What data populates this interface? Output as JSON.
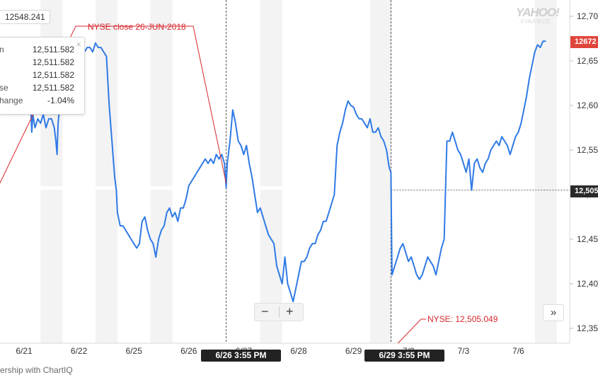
{
  "chart_data": {
    "type": "line",
    "source_label": "YAHOO! FINANCE",
    "x_ticks": [
      "6/21",
      "6/22",
      "6/25",
      "6/26",
      "6/27",
      "6/28",
      "6/29",
      "7/2",
      "7/3",
      "7/6"
    ],
    "y_ticks": [
      "12,70",
      "12,65",
      "12,60",
      "12,55",
      "12,50",
      "12,45",
      "12,40",
      "12,35"
    ],
    "y_tick_values": [
      12700,
      12650,
      12600,
      12550,
      12500,
      12450,
      12400,
      12350
    ],
    "ylim": [
      12325,
      12730
    ],
    "grid": "alternating shaded day columns",
    "line_color": "#2f7ae5",
    "series": [
      {
        "values": [
          [
            6.42,
            12600
          ],
          [
            6.44,
            12570
          ],
          [
            6.46,
            12590
          ],
          [
            6.5,
            12575
          ],
          [
            6.55,
            12585
          ],
          [
            6.6,
            12580
          ],
          [
            6.65,
            12590
          ],
          [
            6.7,
            12575
          ],
          [
            6.75,
            12585
          ],
          [
            6.8,
            12585
          ],
          [
            6.85,
            12575
          ],
          [
            6.88,
            12560
          ],
          [
            6.9,
            12545
          ],
          [
            6.92,
            12580
          ],
          [
            6.95,
            12600
          ],
          [
            6.98,
            12640
          ],
          [
            7.0,
            12650
          ],
          [
            7.05,
            12665
          ],
          [
            7.1,
            12655
          ],
          [
            7.15,
            12670
          ],
          [
            7.2,
            12660
          ],
          [
            7.25,
            12665
          ],
          [
            7.3,
            12660
          ],
          [
            7.35,
            12672
          ],
          [
            7.4,
            12660
          ],
          [
            7.45,
            12665
          ],
          [
            7.5,
            12665
          ],
          [
            7.55,
            12660
          ],
          [
            7.6,
            12670
          ],
          [
            7.65,
            12665
          ],
          [
            7.7,
            12665
          ],
          [
            7.75,
            12660
          ],
          [
            7.8,
            12655
          ],
          [
            7.85,
            12600
          ],
          [
            7.9,
            12560
          ],
          [
            7.95,
            12520
          ],
          [
            7.98,
            12505
          ],
          [
            8.0,
            12480
          ],
          [
            8.05,
            12465
          ],
          [
            8.1,
            12465
          ],
          [
            8.15,
            12460
          ],
          [
            8.2,
            12455
          ],
          [
            8.25,
            12450
          ],
          [
            8.3,
            12445
          ],
          [
            8.35,
            12440
          ],
          [
            8.4,
            12445
          ],
          [
            8.45,
            12470
          ],
          [
            8.5,
            12475
          ],
          [
            8.55,
            12460
          ],
          [
            8.6,
            12450
          ],
          [
            8.65,
            12445
          ],
          [
            8.7,
            12430
          ],
          [
            8.75,
            12450
          ],
          [
            8.8,
            12460
          ],
          [
            8.85,
            12465
          ],
          [
            8.9,
            12480
          ],
          [
            8.95,
            12485
          ],
          [
            9.0,
            12475
          ],
          [
            9.05,
            12480
          ],
          [
            9.1,
            12470
          ],
          [
            9.15,
            12485
          ],
          [
            9.2,
            12485
          ],
          [
            9.25,
            12495
          ],
          [
            9.3,
            12510
          ],
          [
            9.35,
            12515
          ],
          [
            9.4,
            12520
          ],
          [
            9.45,
            12525
          ],
          [
            9.5,
            12530
          ],
          [
            9.55,
            12535
          ],
          [
            9.6,
            12540
          ],
          [
            9.65,
            12535
          ],
          [
            9.7,
            12540
          ],
          [
            9.75,
            12535
          ],
          [
            9.8,
            12545
          ],
          [
            9.85,
            12540
          ],
          [
            9.9,
            12545
          ],
          [
            9.95,
            12535
          ],
          [
            9.98,
            12508
          ],
          [
            10.0,
            12535
          ],
          [
            10.05,
            12560
          ],
          [
            10.1,
            12595
          ],
          [
            10.15,
            12580
          ],
          [
            10.2,
            12560
          ],
          [
            10.25,
            12555
          ],
          [
            10.3,
            12545
          ],
          [
            10.35,
            12555
          ],
          [
            10.4,
            12535
          ],
          [
            10.45,
            12520
          ],
          [
            10.5,
            12500
          ],
          [
            10.55,
            12480
          ],
          [
            10.6,
            12485
          ],
          [
            10.65,
            12475
          ],
          [
            10.7,
            12465
          ],
          [
            10.75,
            12455
          ],
          [
            10.8,
            12450
          ],
          [
            10.85,
            12445
          ],
          [
            10.9,
            12420
          ],
          [
            10.95,
            12410
          ],
          [
            11.0,
            12400
          ],
          [
            11.05,
            12430
          ],
          [
            11.1,
            12400
          ],
          [
            11.15,
            12390
          ],
          [
            11.2,
            12380
          ],
          [
            11.25,
            12395
          ],
          [
            11.3,
            12410
          ],
          [
            11.35,
            12425
          ],
          [
            11.4,
            12425
          ],
          [
            11.45,
            12430
          ],
          [
            11.5,
            12440
          ],
          [
            11.55,
            12445
          ],
          [
            11.6,
            12445
          ],
          [
            11.65,
            12455
          ],
          [
            11.7,
            12460
          ],
          [
            11.75,
            12470
          ],
          [
            11.8,
            12470
          ],
          [
            11.85,
            12480
          ],
          [
            11.9,
            12490
          ],
          [
            11.95,
            12500
          ],
          [
            12.0,
            12555
          ],
          [
            12.05,
            12570
          ],
          [
            12.1,
            12580
          ],
          [
            12.15,
            12595
          ],
          [
            12.2,
            12605
          ],
          [
            12.25,
            12600
          ],
          [
            12.3,
            12598
          ],
          [
            12.35,
            12590
          ],
          [
            12.4,
            12585
          ],
          [
            12.45,
            12585
          ],
          [
            12.5,
            12580
          ],
          [
            12.55,
            12575
          ],
          [
            12.6,
            12585
          ],
          [
            12.65,
            12570
          ],
          [
            12.7,
            12570
          ],
          [
            12.75,
            12575
          ],
          [
            12.8,
            12565
          ],
          [
            12.85,
            12560
          ],
          [
            12.9,
            12550
          ],
          [
            12.95,
            12530
          ],
          [
            12.98,
            12525
          ],
          [
            13.0,
            12410
          ],
          [
            13.05,
            12420
          ],
          [
            13.1,
            12430
          ],
          [
            13.15,
            12440
          ],
          [
            13.2,
            12445
          ],
          [
            13.25,
            12435
          ],
          [
            13.3,
            12425
          ],
          [
            13.35,
            12430
          ],
          [
            13.4,
            12420
          ],
          [
            13.45,
            12410
          ],
          [
            13.5,
            12405
          ],
          [
            13.55,
            12410
          ],
          [
            13.6,
            12420
          ],
          [
            13.65,
            12430
          ],
          [
            13.7,
            12425
          ],
          [
            13.75,
            12420
          ],
          [
            13.8,
            12410
          ],
          [
            13.85,
            12425
          ],
          [
            13.9,
            12440
          ],
          [
            13.95,
            12450
          ],
          [
            14.0,
            12560
          ],
          [
            14.05,
            12560
          ],
          [
            14.1,
            12570
          ],
          [
            14.15,
            12560
          ],
          [
            14.2,
            12550
          ],
          [
            14.25,
            12545
          ],
          [
            14.3,
            12535
          ],
          [
            14.35,
            12525
          ],
          [
            14.4,
            12540
          ],
          [
            14.45,
            12505
          ],
          [
            14.5,
            12535
          ],
          [
            14.55,
            12540
          ],
          [
            14.6,
            12530
          ],
          [
            14.65,
            12525
          ],
          [
            14.7,
            12535
          ],
          [
            14.75,
            12540
          ],
          [
            14.8,
            12550
          ],
          [
            14.85,
            12555
          ],
          [
            14.9,
            12560
          ],
          [
            14.95,
            12555
          ],
          [
            15.0,
            12565
          ],
          [
            15.05,
            12560
          ],
          [
            15.1,
            12555
          ],
          [
            15.15,
            12545
          ],
          [
            15.2,
            12555
          ],
          [
            15.25,
            12565
          ],
          [
            15.3,
            12570
          ],
          [
            15.35,
            12580
          ],
          [
            15.4,
            12595
          ],
          [
            15.45,
            12610
          ],
          [
            15.5,
            12630
          ],
          [
            15.55,
            12645
          ],
          [
            15.6,
            12660
          ],
          [
            15.65,
            12668
          ],
          [
            15.7,
            12665
          ],
          [
            15.75,
            12672
          ],
          [
            15.8,
            12672
          ]
        ]
      }
    ],
    "x_ticks_pos": [
      6.3,
      7.3,
      8.3,
      9.3,
      10.3,
      11.3,
      12.3,
      13.3,
      14.3,
      15.3
    ],
    "shaded_days": [
      [
        6.6,
        7.0
      ],
      [
        7.6,
        8.0
      ],
      [
        8.6,
        9.0
      ],
      [
        10.6,
        11.0
      ],
      [
        12.6,
        13.0
      ],
      [
        15.6,
        16.0
      ]
    ],
    "crosshairs": [
      9.98,
      12.98
    ],
    "close_level": 12505.049,
    "annotations": [
      {
        "text": "NYSE close 26-JUN-2018",
        "point": [
          9.98,
          12508
        ]
      },
      {
        "text": "NYSE: 12,505.049",
        "point": [
          12.98,
          12505
        ]
      }
    ],
    "hud_anchor": [
      5.85,
      12511.582
    ],
    "flags": [
      "6/26 3:55 PM",
      "6/29 3:55 PM"
    ],
    "last_price_label": "12672",
    "close_price_label": "12,505"
  },
  "price_readout": "12548.241",
  "hud": {
    "close_symbol": "×",
    "rows": [
      {
        "label": "n",
        "value": "12,511.582"
      },
      {
        "label": "",
        "value": "12,511.582"
      },
      {
        "label": "",
        "value": "12,511.582"
      },
      {
        "label": "se",
        "value": "12,511.582"
      },
      {
        "label": "hange",
        "value": "-1.04%"
      }
    ]
  },
  "zoom": {
    "out_label": "−",
    "in_label": "+"
  },
  "next_label": "»",
  "watermark": {
    "main": "YAHOO!",
    "sub": "FINANCE"
  },
  "attribution": "ership with ChartIQ"
}
